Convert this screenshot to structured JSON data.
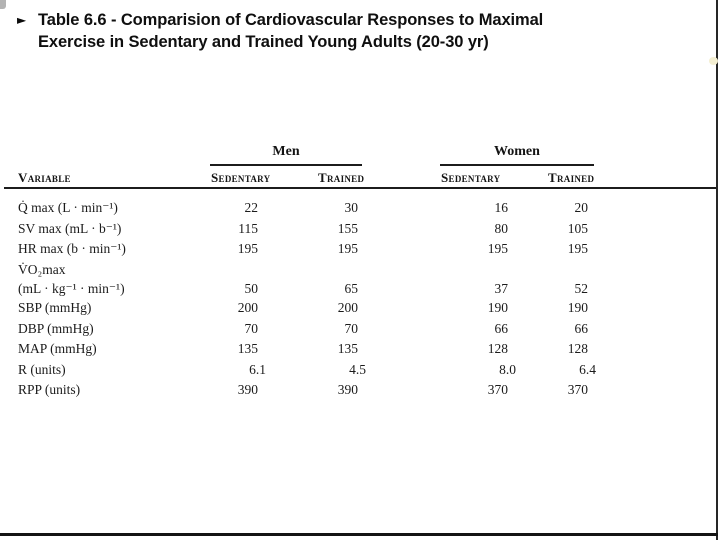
{
  "slide": {
    "bullet_icon": "►",
    "title": "Table 6.6 - Comparision of Cardiovascular Responses to Maximal\nExercise in Sedentary and Trained Young Adults (20-30 yr)"
  },
  "table": {
    "groups": [
      {
        "label": "Men"
      },
      {
        "label": "Women"
      }
    ],
    "column_headers": {
      "variable": "Variable",
      "men_sedentary": "Sedentary",
      "men_trained": "Trained",
      "women_sedentary": "Sedentary",
      "women_trained": "Trained"
    },
    "rows": [
      {
        "variable": "Q̇ max (L · min⁻¹)",
        "values": [
          "22",
          "30",
          "16",
          "20"
        ]
      },
      {
        "variable": "SV max (mL · b⁻¹)",
        "values": [
          "115",
          "155",
          "80",
          "105"
        ]
      },
      {
        "variable": "HR max (b · min⁻¹)",
        "values": [
          "195",
          "195",
          "195",
          "195"
        ]
      },
      {
        "variable": "V̇O₂max\n(mL · kg⁻¹ · min⁻¹)",
        "values": [
          "50",
          "65",
          "37",
          "52"
        ]
      },
      {
        "variable": "SBP (mmHg)",
        "values": [
          "200",
          "200",
          "190",
          "190"
        ]
      },
      {
        "variable": "DBP (mmHg)",
        "values": [
          "70",
          "70",
          "66",
          "66"
        ]
      },
      {
        "variable": "MAP (mmHg)",
        "values": [
          "135",
          "135",
          "128",
          "128"
        ]
      },
      {
        "variable": "R (units)",
        "values": [
          "6.1",
          "4.5",
          "8.0",
          "6.4"
        ]
      },
      {
        "variable": "RPP (units)",
        "values": [
          "390",
          "390",
          "370",
          "370"
        ]
      }
    ]
  }
}
